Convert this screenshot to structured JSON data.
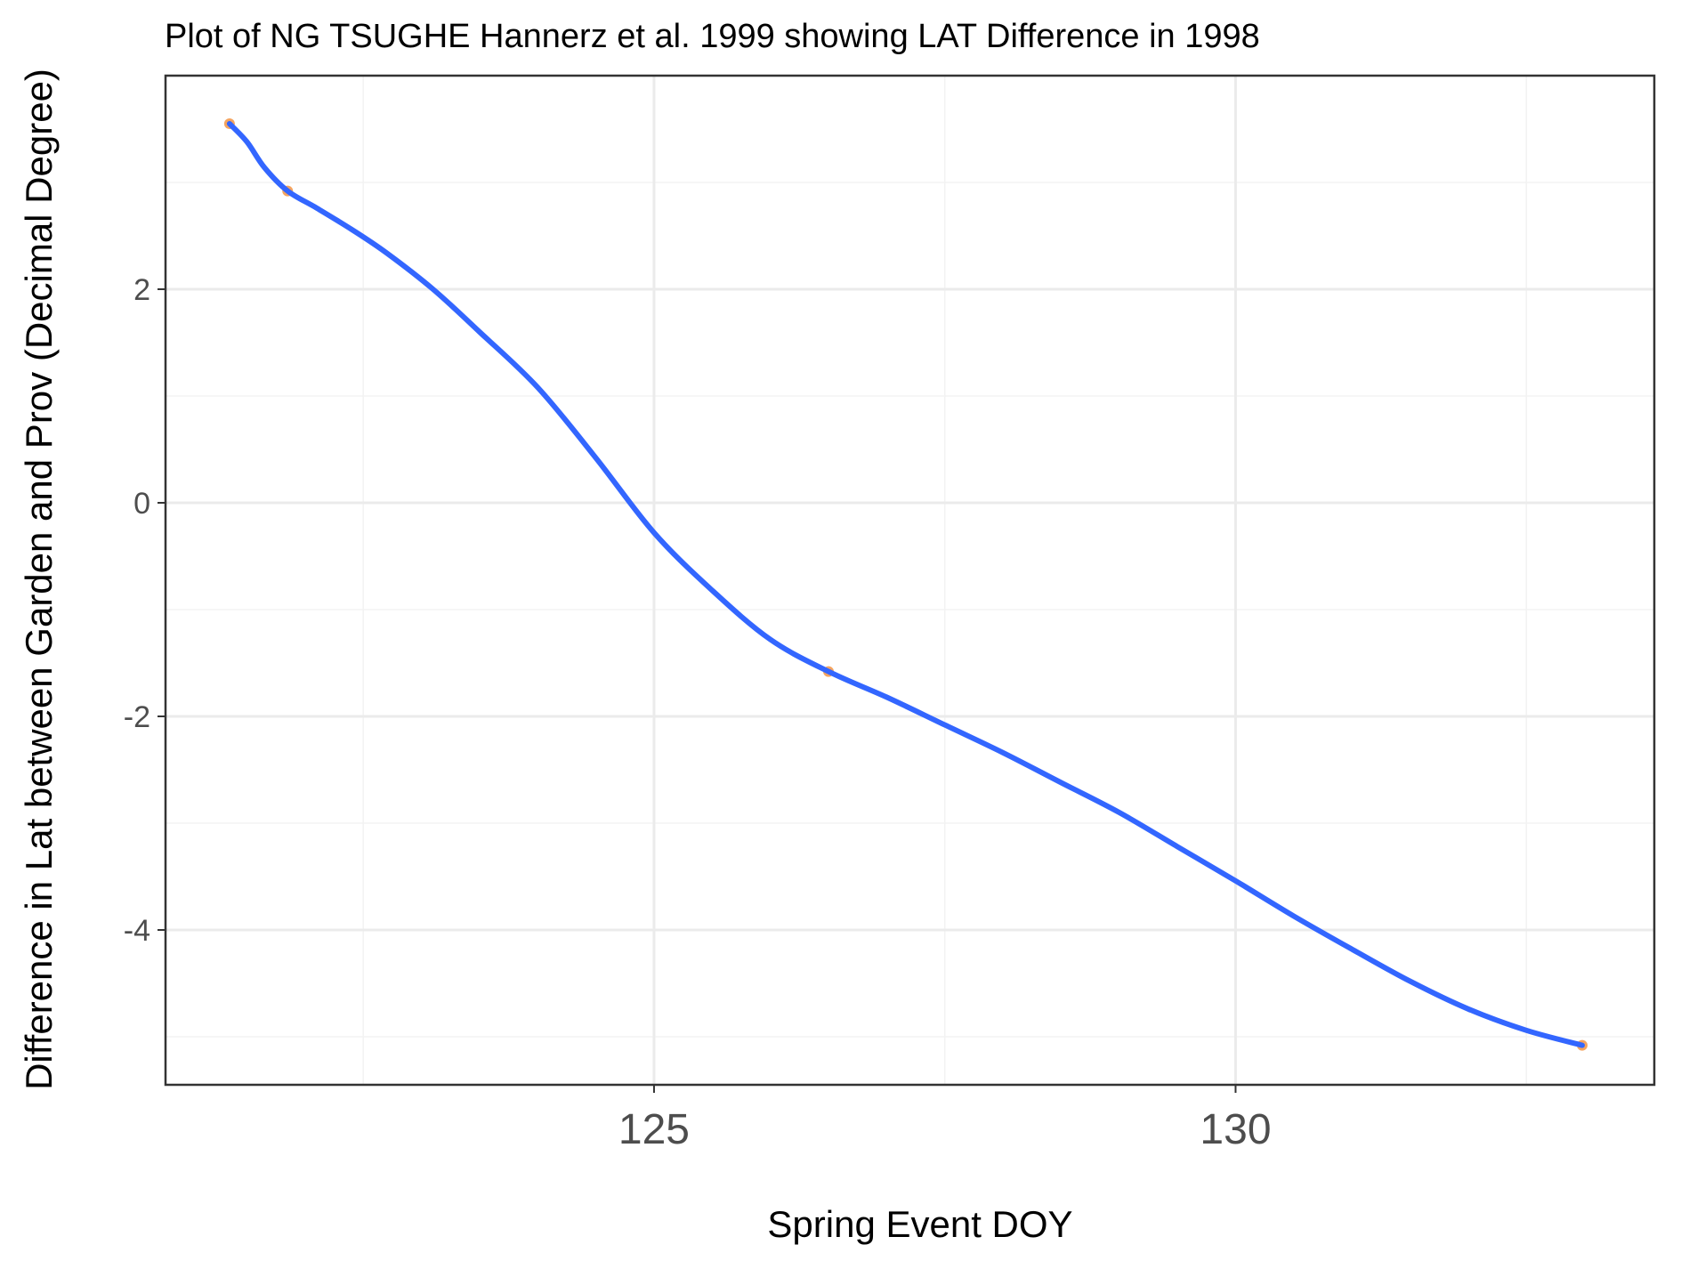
{
  "chart_data": {
    "type": "line",
    "title": "Plot of NG TSUGHE Hannerz et al. 1999 showing LAT Difference in 1998",
    "xlabel": "Spring Event DOY",
    "ylabel": "Difference in Lat between Garden and Prov (Decimal Degree)",
    "xlim": [
      120.8,
      133.6
    ],
    "ylim": [
      -5.45,
      4.0
    ],
    "x_ticks": [
      125,
      130
    ],
    "x_tick_labels": [
      "125",
      "130"
    ],
    "y_ticks": [
      -4,
      -2,
      0,
      2
    ],
    "y_tick_labels": [
      "-4",
      "-2",
      "0",
      "2"
    ],
    "grid": true,
    "points": {
      "name": "",
      "color": "#f4a460",
      "x": [
        121.35,
        121.85,
        126.5,
        132.98
      ],
      "y": [
        3.55,
        2.92,
        -1.58,
        -5.08
      ]
    },
    "smooth": {
      "name": "",
      "color": "#3366ff",
      "x": [
        121.35,
        121.5,
        121.65,
        121.85,
        122.1,
        122.4,
        122.7,
        123.1,
        123.5,
        124.0,
        124.5,
        125.0,
        125.5,
        126.0,
        126.5,
        127.0,
        127.5,
        128.0,
        128.5,
        129.0,
        129.5,
        130.0,
        130.5,
        131.0,
        131.5,
        132.0,
        132.5,
        132.98
      ],
      "y": [
        3.55,
        3.38,
        3.14,
        2.92,
        2.76,
        2.56,
        2.34,
        2.0,
        1.6,
        1.08,
        0.42,
        -0.28,
        -0.82,
        -1.28,
        -1.58,
        -1.82,
        -2.08,
        -2.34,
        -2.62,
        -2.9,
        -3.22,
        -3.54,
        -3.87,
        -4.18,
        -4.48,
        -4.74,
        -4.94,
        -5.08
      ]
    }
  }
}
